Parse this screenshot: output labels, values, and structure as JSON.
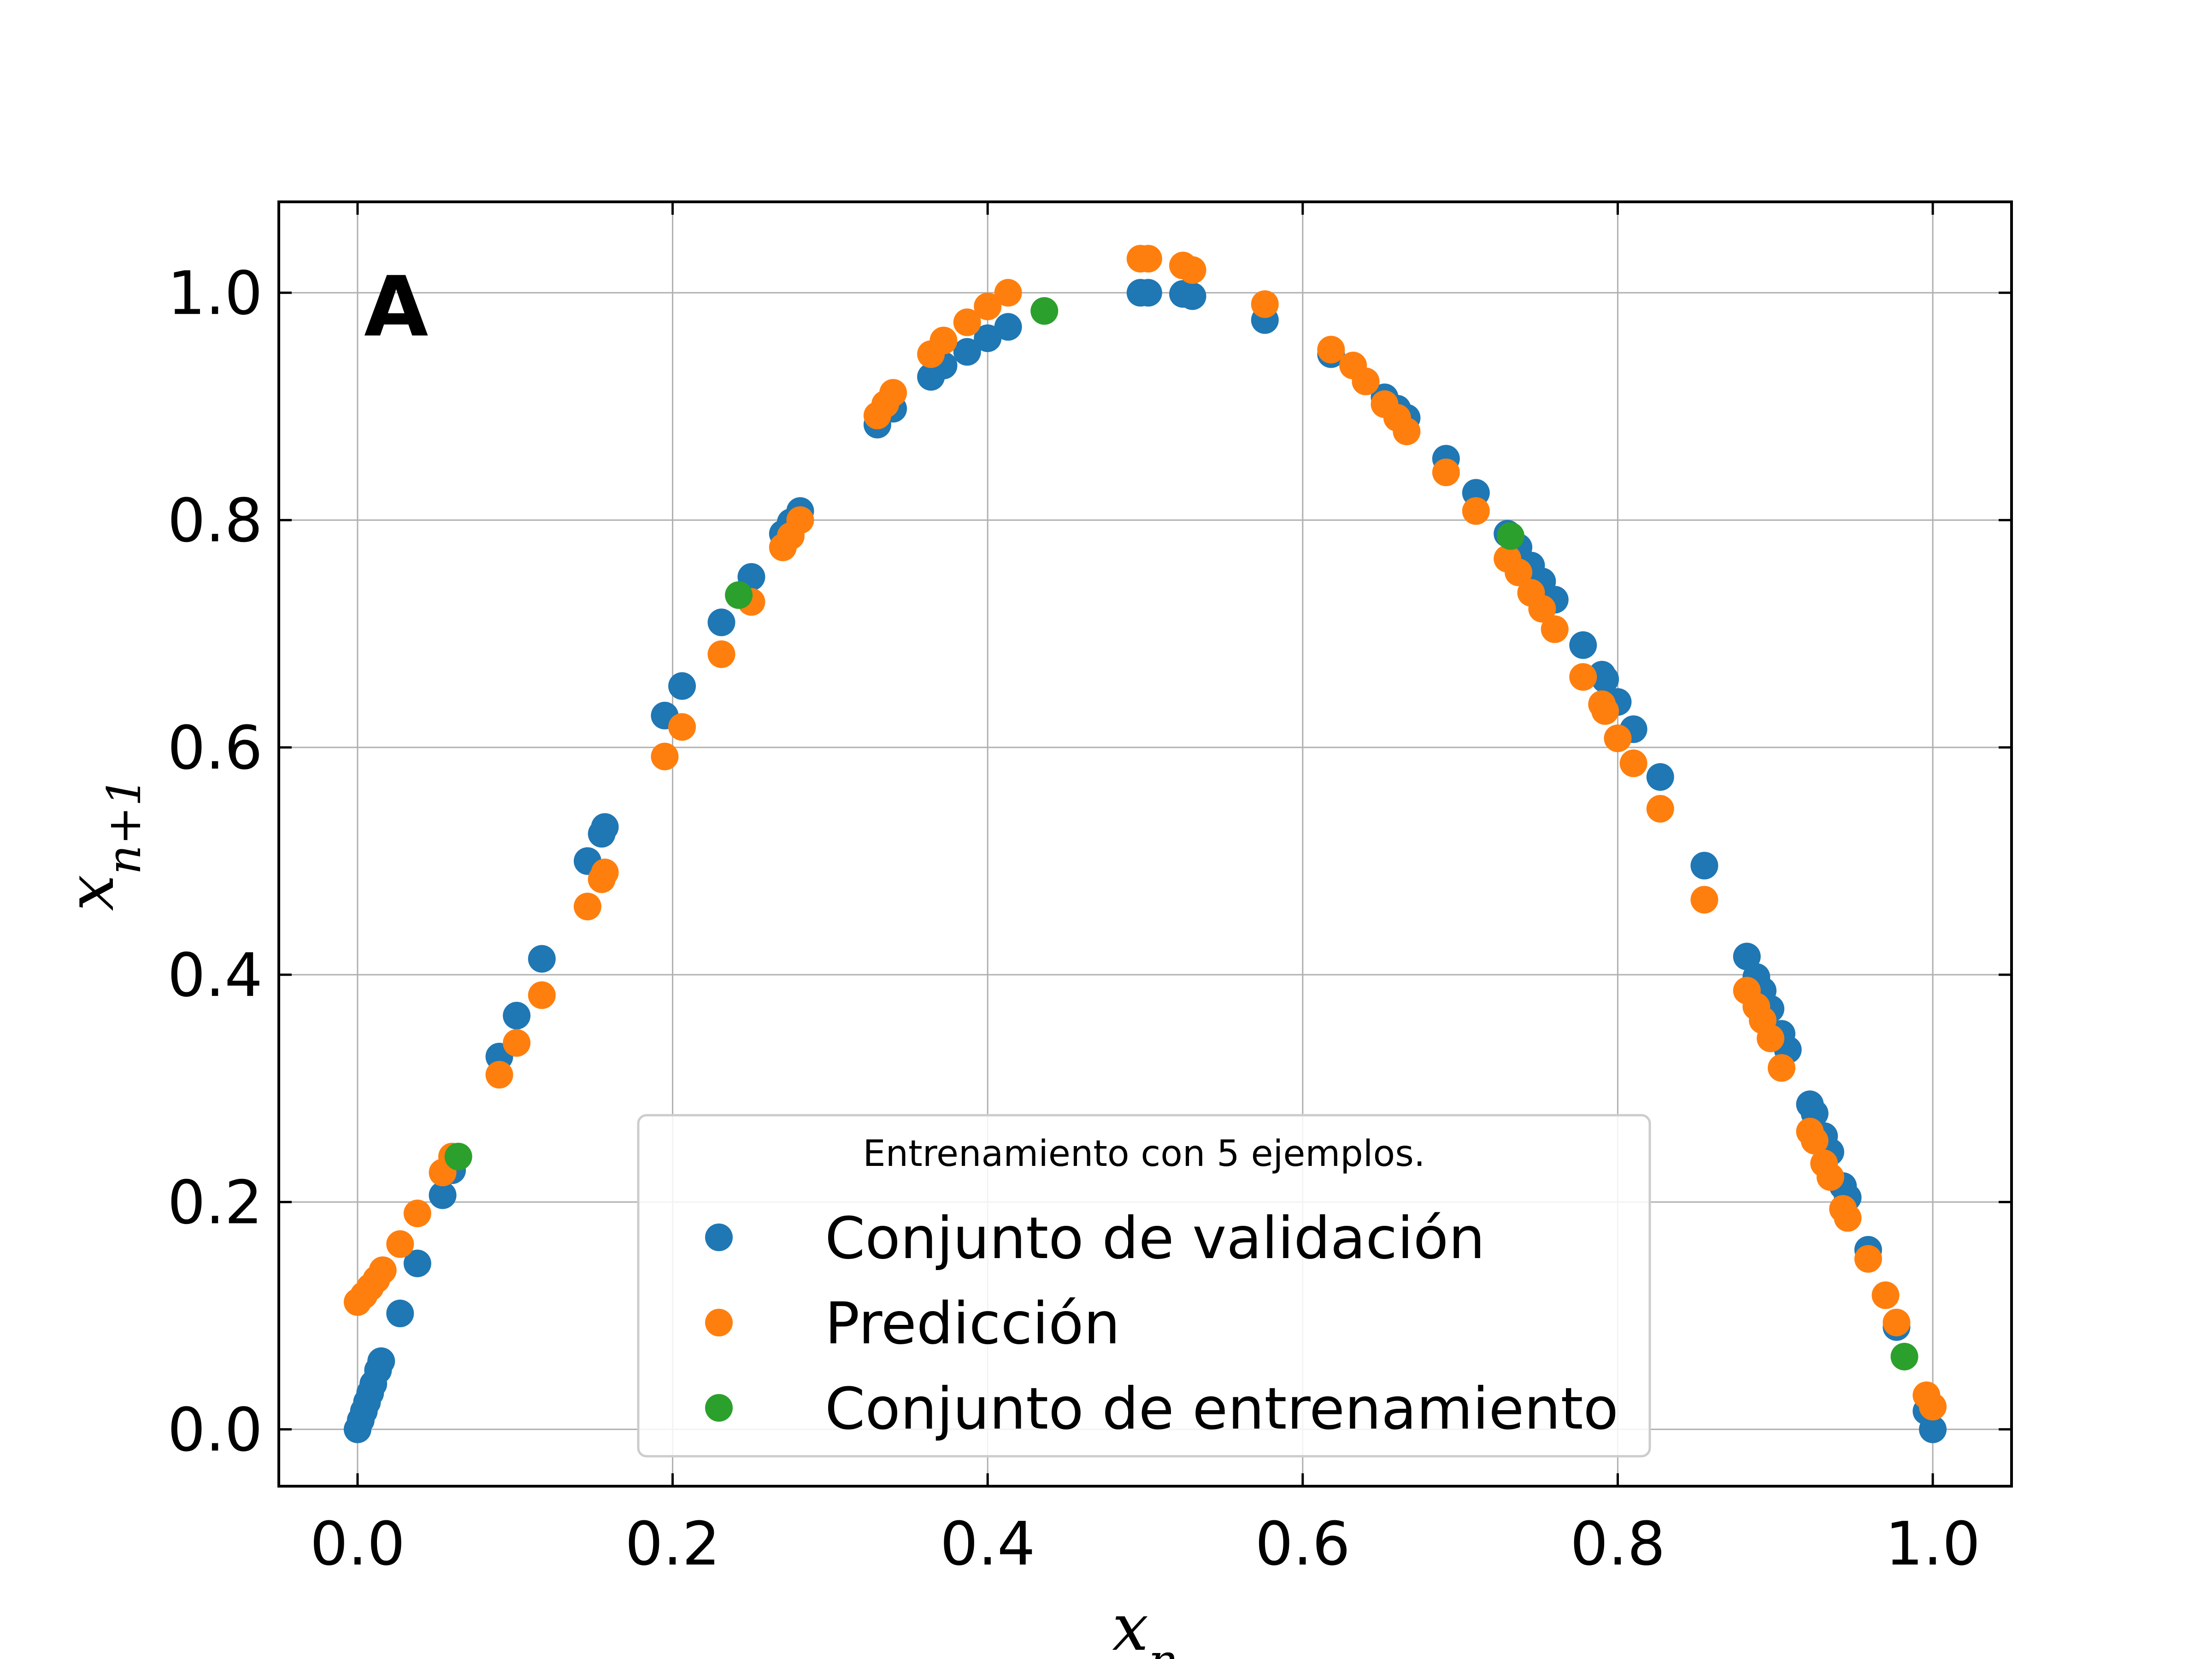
{
  "chart_data": {
    "type": "scatter",
    "panel_label": "A",
    "xlabel": "x_n",
    "ylabel": "x_{n+1}",
    "xlim": [
      -0.05,
      1.05
    ],
    "ylim": [
      -0.05,
      1.08
    ],
    "xticks": [
      0.0,
      0.2,
      0.4,
      0.6,
      0.8,
      1.0
    ],
    "yticks": [
      0.0,
      0.2,
      0.4,
      0.6,
      0.8,
      1.0
    ],
    "xtick_labels": [
      "0.0",
      "0.2",
      "0.4",
      "0.6",
      "0.8",
      "1.0"
    ],
    "ytick_labels": [
      "0.0",
      "0.2",
      "0.4",
      "0.6",
      "0.8",
      "1.0"
    ],
    "grid": true,
    "legend_title": "Entrenamiento con 5 ejemplos.",
    "legend_placement": "lower-center",
    "series": [
      {
        "name": "Conjunto de validación",
        "color": "#1f77b4",
        "points": [
          [
            0.0,
            0.0
          ],
          [
            0.002,
            0.008
          ],
          [
            0.004,
            0.016
          ],
          [
            0.006,
            0.024
          ],
          [
            0.008,
            0.032
          ],
          [
            0.01,
            0.04
          ],
          [
            0.013,
            0.052
          ],
          [
            0.015,
            0.06
          ],
          [
            0.027,
            0.102
          ],
          [
            0.038,
            0.146
          ],
          [
            0.054,
            0.206
          ],
          [
            0.06,
            0.228
          ],
          [
            0.09,
            0.328
          ],
          [
            0.101,
            0.364
          ],
          [
            0.117,
            0.414
          ],
          [
            0.146,
            0.5
          ],
          [
            0.155,
            0.524
          ],
          [
            0.157,
            0.53
          ],
          [
            0.195,
            0.628
          ],
          [
            0.206,
            0.654
          ],
          [
            0.231,
            0.71
          ],
          [
            0.25,
            0.75
          ],
          [
            0.27,
            0.788
          ],
          [
            0.275,
            0.798
          ],
          [
            0.281,
            0.808
          ],
          [
            0.33,
            0.884
          ],
          [
            0.34,
            0.898
          ],
          [
            0.364,
            0.926
          ],
          [
            0.372,
            0.936
          ],
          [
            0.387,
            0.948
          ],
          [
            0.4,
            0.96
          ],
          [
            0.413,
            0.97
          ],
          [
            0.497,
            1.0
          ],
          [
            0.502,
            1.0
          ],
          [
            0.524,
            0.999
          ],
          [
            0.53,
            0.997
          ],
          [
            0.576,
            0.976
          ],
          [
            0.618,
            0.946
          ],
          [
            0.64,
            0.922
          ],
          [
            0.652,
            0.908
          ],
          [
            0.66,
            0.898
          ],
          [
            0.666,
            0.89
          ],
          [
            0.691,
            0.854
          ],
          [
            0.71,
            0.824
          ],
          [
            0.73,
            0.788
          ],
          [
            0.737,
            0.776
          ],
          [
            0.745,
            0.76
          ],
          [
            0.752,
            0.746
          ],
          [
            0.76,
            0.73
          ],
          [
            0.778,
            0.69
          ],
          [
            0.79,
            0.664
          ],
          [
            0.792,
            0.66
          ],
          [
            0.8,
            0.64
          ],
          [
            0.81,
            0.616
          ],
          [
            0.827,
            0.574
          ],
          [
            0.855,
            0.496
          ],
          [
            0.882,
            0.416
          ],
          [
            0.888,
            0.398
          ],
          [
            0.892,
            0.386
          ],
          [
            0.897,
            0.37
          ],
          [
            0.904,
            0.348
          ],
          [
            0.908,
            0.334
          ],
          [
            0.922,
            0.286
          ],
          [
            0.925,
            0.278
          ],
          [
            0.931,
            0.258
          ],
          [
            0.935,
            0.244
          ],
          [
            0.943,
            0.214
          ],
          [
            0.946,
            0.204
          ],
          [
            0.959,
            0.158
          ],
          [
            0.977,
            0.09
          ],
          [
            0.996,
            0.016
          ],
          [
            1.0,
            0.0
          ]
        ]
      },
      {
        "name": "Predicción",
        "color": "#ff7f0e",
        "points": [
          [
            0.0,
            0.112
          ],
          [
            0.004,
            0.118
          ],
          [
            0.008,
            0.125
          ],
          [
            0.012,
            0.132
          ],
          [
            0.016,
            0.14
          ],
          [
            0.027,
            0.163
          ],
          [
            0.038,
            0.19
          ],
          [
            0.054,
            0.226
          ],
          [
            0.06,
            0.24
          ],
          [
            0.09,
            0.312
          ],
          [
            0.101,
            0.34
          ],
          [
            0.117,
            0.382
          ],
          [
            0.146,
            0.46
          ],
          [
            0.155,
            0.484
          ],
          [
            0.157,
            0.49
          ],
          [
            0.195,
            0.592
          ],
          [
            0.206,
            0.618
          ],
          [
            0.231,
            0.682
          ],
          [
            0.25,
            0.728
          ],
          [
            0.27,
            0.776
          ],
          [
            0.275,
            0.786
          ],
          [
            0.281,
            0.8
          ],
          [
            0.33,
            0.892
          ],
          [
            0.335,
            0.902
          ],
          [
            0.34,
            0.912
          ],
          [
            0.364,
            0.946
          ],
          [
            0.372,
            0.958
          ],
          [
            0.387,
            0.974
          ],
          [
            0.4,
            0.988
          ],
          [
            0.413,
            1.0
          ],
          [
            0.497,
            1.03
          ],
          [
            0.502,
            1.03
          ],
          [
            0.524,
            1.024
          ],
          [
            0.53,
            1.02
          ],
          [
            0.576,
            0.99
          ],
          [
            0.618,
            0.95
          ],
          [
            0.632,
            0.936
          ],
          [
            0.64,
            0.922
          ],
          [
            0.652,
            0.902
          ],
          [
            0.66,
            0.89
          ],
          [
            0.666,
            0.878
          ],
          [
            0.691,
            0.842
          ],
          [
            0.71,
            0.808
          ],
          [
            0.73,
            0.766
          ],
          [
            0.737,
            0.754
          ],
          [
            0.745,
            0.736
          ],
          [
            0.752,
            0.722
          ],
          [
            0.76,
            0.704
          ],
          [
            0.778,
            0.662
          ],
          [
            0.79,
            0.638
          ],
          [
            0.792,
            0.632
          ],
          [
            0.8,
            0.608
          ],
          [
            0.81,
            0.586
          ],
          [
            0.827,
            0.546
          ],
          [
            0.855,
            0.466
          ],
          [
            0.882,
            0.386
          ],
          [
            0.888,
            0.372
          ],
          [
            0.892,
            0.36
          ],
          [
            0.897,
            0.344
          ],
          [
            0.904,
            0.318
          ],
          [
            0.922,
            0.262
          ],
          [
            0.925,
            0.254
          ],
          [
            0.931,
            0.234
          ],
          [
            0.935,
            0.222
          ],
          [
            0.943,
            0.194
          ],
          [
            0.946,
            0.186
          ],
          [
            0.959,
            0.15
          ],
          [
            0.97,
            0.118
          ],
          [
            0.977,
            0.094
          ],
          [
            0.996,
            0.03
          ],
          [
            1.0,
            0.02
          ]
        ]
      },
      {
        "name": "Conjunto de entrenamiento",
        "color": "#2ca02c",
        "points": [
          [
            0.064,
            0.24
          ],
          [
            0.242,
            0.734
          ],
          [
            0.436,
            0.984
          ],
          [
            0.732,
            0.786
          ],
          [
            0.982,
            0.064
          ]
        ]
      }
    ]
  }
}
